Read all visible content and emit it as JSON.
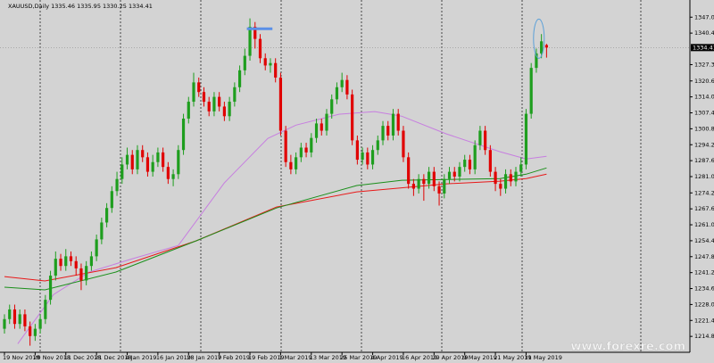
{
  "chart_data": {
    "type": "candlestick",
    "title": "XAUUSD,Daily  1335.46 1335.95 1330.25 1334.41",
    "watermark": "www.forexre.com",
    "categories": [
      "19 Nov 2018",
      null,
      null,
      null,
      null,
      null,
      "29 Nov 2018",
      null,
      null,
      null,
      null,
      null,
      "11 Dec 2018",
      null,
      null,
      null,
      null,
      null,
      "21 Dec 2018",
      null,
      null,
      null,
      null,
      null,
      "4 Jan 2019",
      null,
      null,
      null,
      null,
      null,
      "16 Jan 2019",
      null,
      null,
      null,
      null,
      null,
      "28 Jan 2019",
      null,
      null,
      null,
      null,
      null,
      "7 Feb 2019",
      null,
      null,
      null,
      null,
      null,
      "19 Feb 2019",
      null,
      null,
      null,
      null,
      null,
      "1 Mar 2019",
      null,
      null,
      null,
      null,
      null,
      "13 Mar 2019",
      null,
      null,
      null,
      null,
      null,
      "25 Mar 2019",
      null,
      null,
      null,
      null,
      null,
      "4 Apr 2019",
      null,
      null,
      null,
      null,
      null,
      "16 Apr 2019",
      null,
      null,
      null,
      null,
      null,
      "29 Apr 2019",
      null,
      null,
      null,
      null,
      null,
      "9 May 2019",
      null,
      null,
      null,
      null,
      null,
      "21 May 2019",
      null,
      null,
      null,
      null,
      null,
      "31 May 2019",
      null,
      null,
      null,
      null
    ],
    "open": [
      1218,
      1222,
      1226,
      1220,
      1224,
      1219,
      1215,
      1218,
      1222,
      1230,
      1240,
      1247,
      1244,
      1248,
      1246,
      1243,
      1238,
      1244,
      1248,
      1255,
      1262,
      1268,
      1275,
      1280,
      1286,
      1290,
      1284,
      1292,
      1289,
      1283,
      1287,
      1291,
      1285,
      1280,
      1282,
      1292,
      1305,
      1312,
      1320,
      1316,
      1312,
      1308,
      1314,
      1310,
      1306,
      1312,
      1318,
      1325,
      1331,
      1343,
      1338,
      1330,
      1327,
      1328,
      1322,
      1300,
      1287,
      1284,
      1289,
      1293,
      1291,
      1297,
      1303,
      1300,
      1307,
      1313,
      1318,
      1321,
      1315,
      1296,
      1288,
      1291,
      1286,
      1292,
      1296,
      1302,
      1298,
      1307,
      1300,
      1289,
      1278,
      1276,
      1280,
      1278,
      1283,
      1277,
      1274,
      1280,
      1283,
      1281,
      1285,
      1288,
      1284,
      1294,
      1300,
      1292,
      1283,
      1278,
      1276,
      1282,
      1279,
      1283,
      1286,
      1307,
      1326,
      1332,
      1335.46
    ],
    "high": [
      1224,
      1228,
      1228,
      1226,
      1226,
      1221,
      1220,
      1224,
      1232,
      1242,
      1250,
      1249,
      1251,
      1250,
      1248,
      1245,
      1246,
      1250,
      1257,
      1264,
      1270,
      1277,
      1283,
      1289,
      1293,
      1292,
      1294,
      1294,
      1291,
      1290,
      1293,
      1293,
      1287,
      1284,
      1294,
      1307,
      1314,
      1324,
      1322,
      1318,
      1314,
      1316,
      1316,
      1312,
      1314,
      1320,
      1327,
      1334,
      1346.5,
      1345,
      1340,
      1332,
      1330,
      1330,
      1324,
      1302,
      1290,
      1291,
      1295,
      1295,
      1299,
      1305,
      1305,
      1309,
      1315,
      1320,
      1324,
      1323,
      1317,
      1298,
      1293,
      1293,
      1294,
      1298,
      1304,
      1304,
      1309,
      1309,
      1302,
      1291,
      1280,
      1282,
      1282,
      1285,
      1285,
      1279,
      1282,
      1285,
      1285,
      1287,
      1290,
      1290,
      1296,
      1302,
      1302,
      1294,
      1285,
      1280,
      1284,
      1284,
      1285,
      1289,
      1309,
      1328,
      1334,
      1340,
      1335.95
    ],
    "low": [
      1216,
      1220,
      1218,
      1218,
      1217,
      1211,
      1213,
      1216,
      1220,
      1228,
      1238,
      1242,
      1242,
      1244,
      1240,
      1234,
      1236,
      1242,
      1246,
      1253,
      1260,
      1266,
      1273,
      1278,
      1284,
      1282,
      1282,
      1287,
      1281,
      1281,
      1285,
      1283,
      1278,
      1277,
      1280,
      1290,
      1303,
      1310,
      1314,
      1310,
      1306,
      1306,
      1308,
      1304,
      1304,
      1310,
      1316,
      1323,
      1329,
      1334,
      1328,
      1325,
      1324,
      1320,
      1298,
      1285,
      1282,
      1282,
      1287,
      1289,
      1289,
      1295,
      1298,
      1298,
      1305,
      1311,
      1316,
      1313,
      1294,
      1286,
      1286,
      1284,
      1284,
      1290,
      1294,
      1296,
      1296,
      1298,
      1287,
      1276,
      1273,
      1274,
      1271,
      1276,
      1275,
      1269,
      1272,
      1278,
      1279,
      1279,
      1283,
      1282,
      1282,
      1292,
      1290,
      1281,
      1275,
      1273,
      1274,
      1277,
      1277,
      1281,
      1284,
      1305,
      1324,
      1330,
      1330.25
    ],
    "close": [
      1222,
      1226,
      1220,
      1224,
      1219,
      1215,
      1218,
      1222,
      1230,
      1240,
      1247,
      1244,
      1248,
      1246,
      1243,
      1238,
      1244,
      1248,
      1255,
      1262,
      1268,
      1275,
      1280,
      1286,
      1290,
      1284,
      1292,
      1289,
      1283,
      1287,
      1291,
      1285,
      1280,
      1282,
      1292,
      1305,
      1312,
      1320,
      1316,
      1312,
      1308,
      1314,
      1310,
      1306,
      1312,
      1318,
      1325,
      1331,
      1343,
      1338,
      1330,
      1327,
      1328,
      1322,
      1300,
      1287,
      1284,
      1289,
      1293,
      1291,
      1297,
      1303,
      1300,
      1307,
      1313,
      1318,
      1321,
      1315,
      1296,
      1288,
      1291,
      1286,
      1292,
      1296,
      1302,
      1298,
      1307,
      1300,
      1289,
      1278,
      1276,
      1280,
      1278,
      1283,
      1277,
      1274,
      1280,
      1283,
      1281,
      1285,
      1288,
      1284,
      1294,
      1300,
      1292,
      1283,
      1278,
      1276,
      1282,
      1279,
      1283,
      1286,
      1307,
      1326,
      1332,
      1337,
      1334.41
    ],
    "up_color": "#1e9e1e",
    "down_color": "#e00000",
    "ylim": [
      1209,
      1353
    ],
    "yticks": [
      {
        "value": 1347,
        "label": "1347.00"
      },
      {
        "value": 1340.4,
        "label": "1340.40"
      },
      1327.35,
      {
        "value": 1320.6,
        "label": "1320.60"
      },
      {
        "value": 1314,
        "label": "1314.00"
      },
      {
        "value": 1307.4,
        "label": "1307.40"
      },
      {
        "value": 1300.8,
        "label": "1300.80"
      },
      {
        "value": 1294.2,
        "label": "1294.20"
      },
      {
        "value": 1287.6,
        "label": "1287.60"
      },
      {
        "value": 1281,
        "label": "1281.00"
      },
      1274.25,
      1267.65,
      1261.05,
      1254.45,
      1247.85,
      1241.25,
      1234.65,
      1228.05,
      1221.45,
      1214.85
    ],
    "moving_averages": [
      {
        "color": "#c77ee0",
        "x": [
          2.6,
          9.6,
          16.6,
          25,
          34,
          43,
          51.5,
          57,
          65.4,
          72.4,
          77.7,
          86.4,
          96.9,
          102,
          106
        ],
        "values": [
          1211.8,
          1232.2,
          1241.5,
          1247,
          1252.5,
          1278.4,
          1296.8,
          1302.3,
          1306.8,
          1307.9,
          1306,
          1298.7,
          1291.3,
          1288.3,
          1289.4
        ]
      },
      {
        "color": "#e81818",
        "x": [
          0,
          7.9,
          21.8,
          37.5,
          53.2,
          68.9,
          86.4,
          96.9,
          102,
          106
        ],
        "values": [
          1239.6,
          1237.8,
          1243.3,
          1254.4,
          1268.4,
          1274.7,
          1278,
          1279.1,
          1280.2,
          1282
        ]
      },
      {
        "color": "#1a8f1a",
        "x": [
          0,
          7.9,
          21.8,
          37.5,
          53.2,
          68.9,
          77.7,
          96.9,
          102,
          106
        ],
        "values": [
          1235.2,
          1234.1,
          1241.5,
          1254.4,
          1268,
          1277.3,
          1279.5,
          1280.2,
          1282,
          1284.6
        ]
      }
    ],
    "trendline": {
      "value": 1342.2,
      "x": [
        47.4,
        52.4
      ],
      "color": "#5b8fe8"
    },
    "ellipse": {
      "x": 104.5,
      "y": 1338.1,
      "color": "#5ba0d8"
    }
  }
}
